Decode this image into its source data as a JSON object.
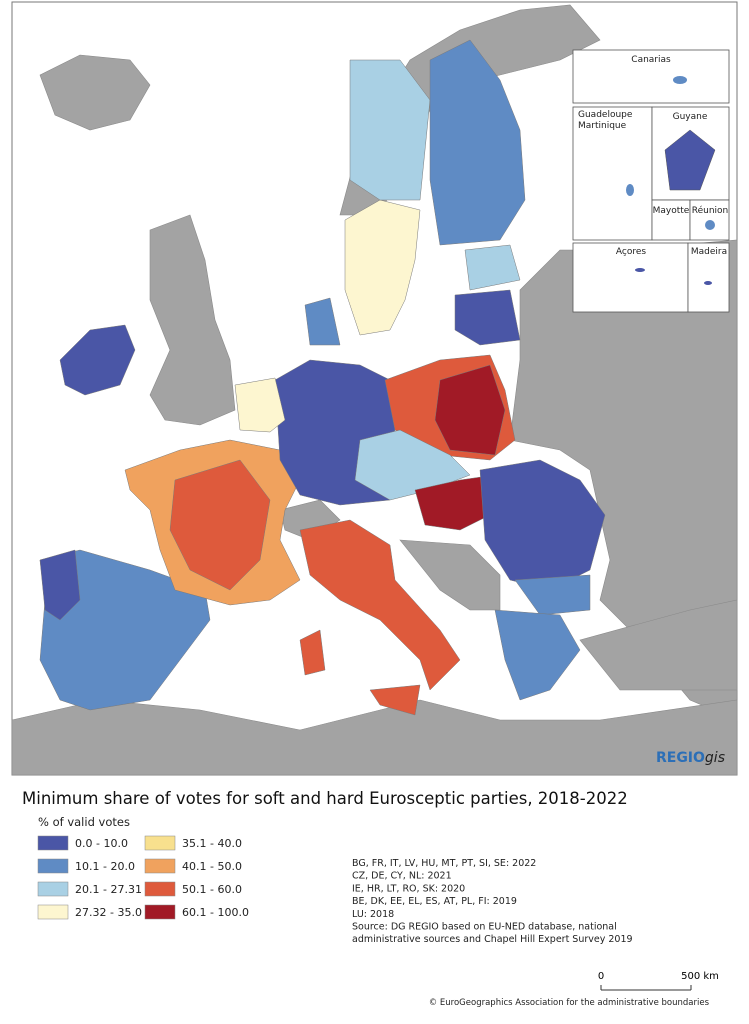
{
  "map": {
    "insets": [
      {
        "lines": [
          "Canarias"
        ]
      },
      {
        "lines": [
          "Guadeloupe",
          "Martinique"
        ]
      },
      {
        "lines": [
          "Guyane"
        ]
      },
      {
        "lines": [
          "Mayotte"
        ]
      },
      {
        "lines": [
          "Réunion"
        ]
      },
      {
        "lines": [
          "Açores"
        ]
      },
      {
        "lines": [
          "Madeira"
        ]
      }
    ],
    "logo": {
      "bold": "REGIO",
      "italic": "gis"
    }
  },
  "legend": {
    "title": "Minimum share of votes for soft and hard Eurosceptic parties, 2018-2022",
    "subtitle": "% of valid votes",
    "items": [
      {
        "label": "0.0 - 10.0",
        "color": "#4a56a6"
      },
      {
        "label": "10.1 - 20.0",
        "color": "#5f8bc4"
      },
      {
        "label": "20.1 - 27.31",
        "color": "#a9d0e4"
      },
      {
        "label": "27.32 - 35.0",
        "color": "#fdf6d0"
      },
      {
        "label": "35.1 - 40.0",
        "color": "#f8e08e"
      },
      {
        "label": "40.1 - 50.0",
        "color": "#f0a25e"
      },
      {
        "label": "50.1 - 60.0",
        "color": "#de5a3c"
      },
      {
        "label": "60.1 - 100.0",
        "color": "#a11a26"
      }
    ],
    "notes": [
      "BG, FR, IT, LV, HU, MT, PT, SI, SE: 2022",
      "CZ, DE, CY, NL: 2021",
      "IE, HR, LT, RO, SK: 2020",
      "BE, DK, EE, EL, ES, AT, PL, FI: 2019",
      "LU: 2018",
      "Source: DG REGIO based on EU-NED database, national",
      "administrative sources and Chapel Hill Expert Survey 2019"
    ],
    "scale": [
      "0",
      "500 km"
    ],
    "copyright": "© EuroGeographics Association for the administrative boundaries"
  }
}
